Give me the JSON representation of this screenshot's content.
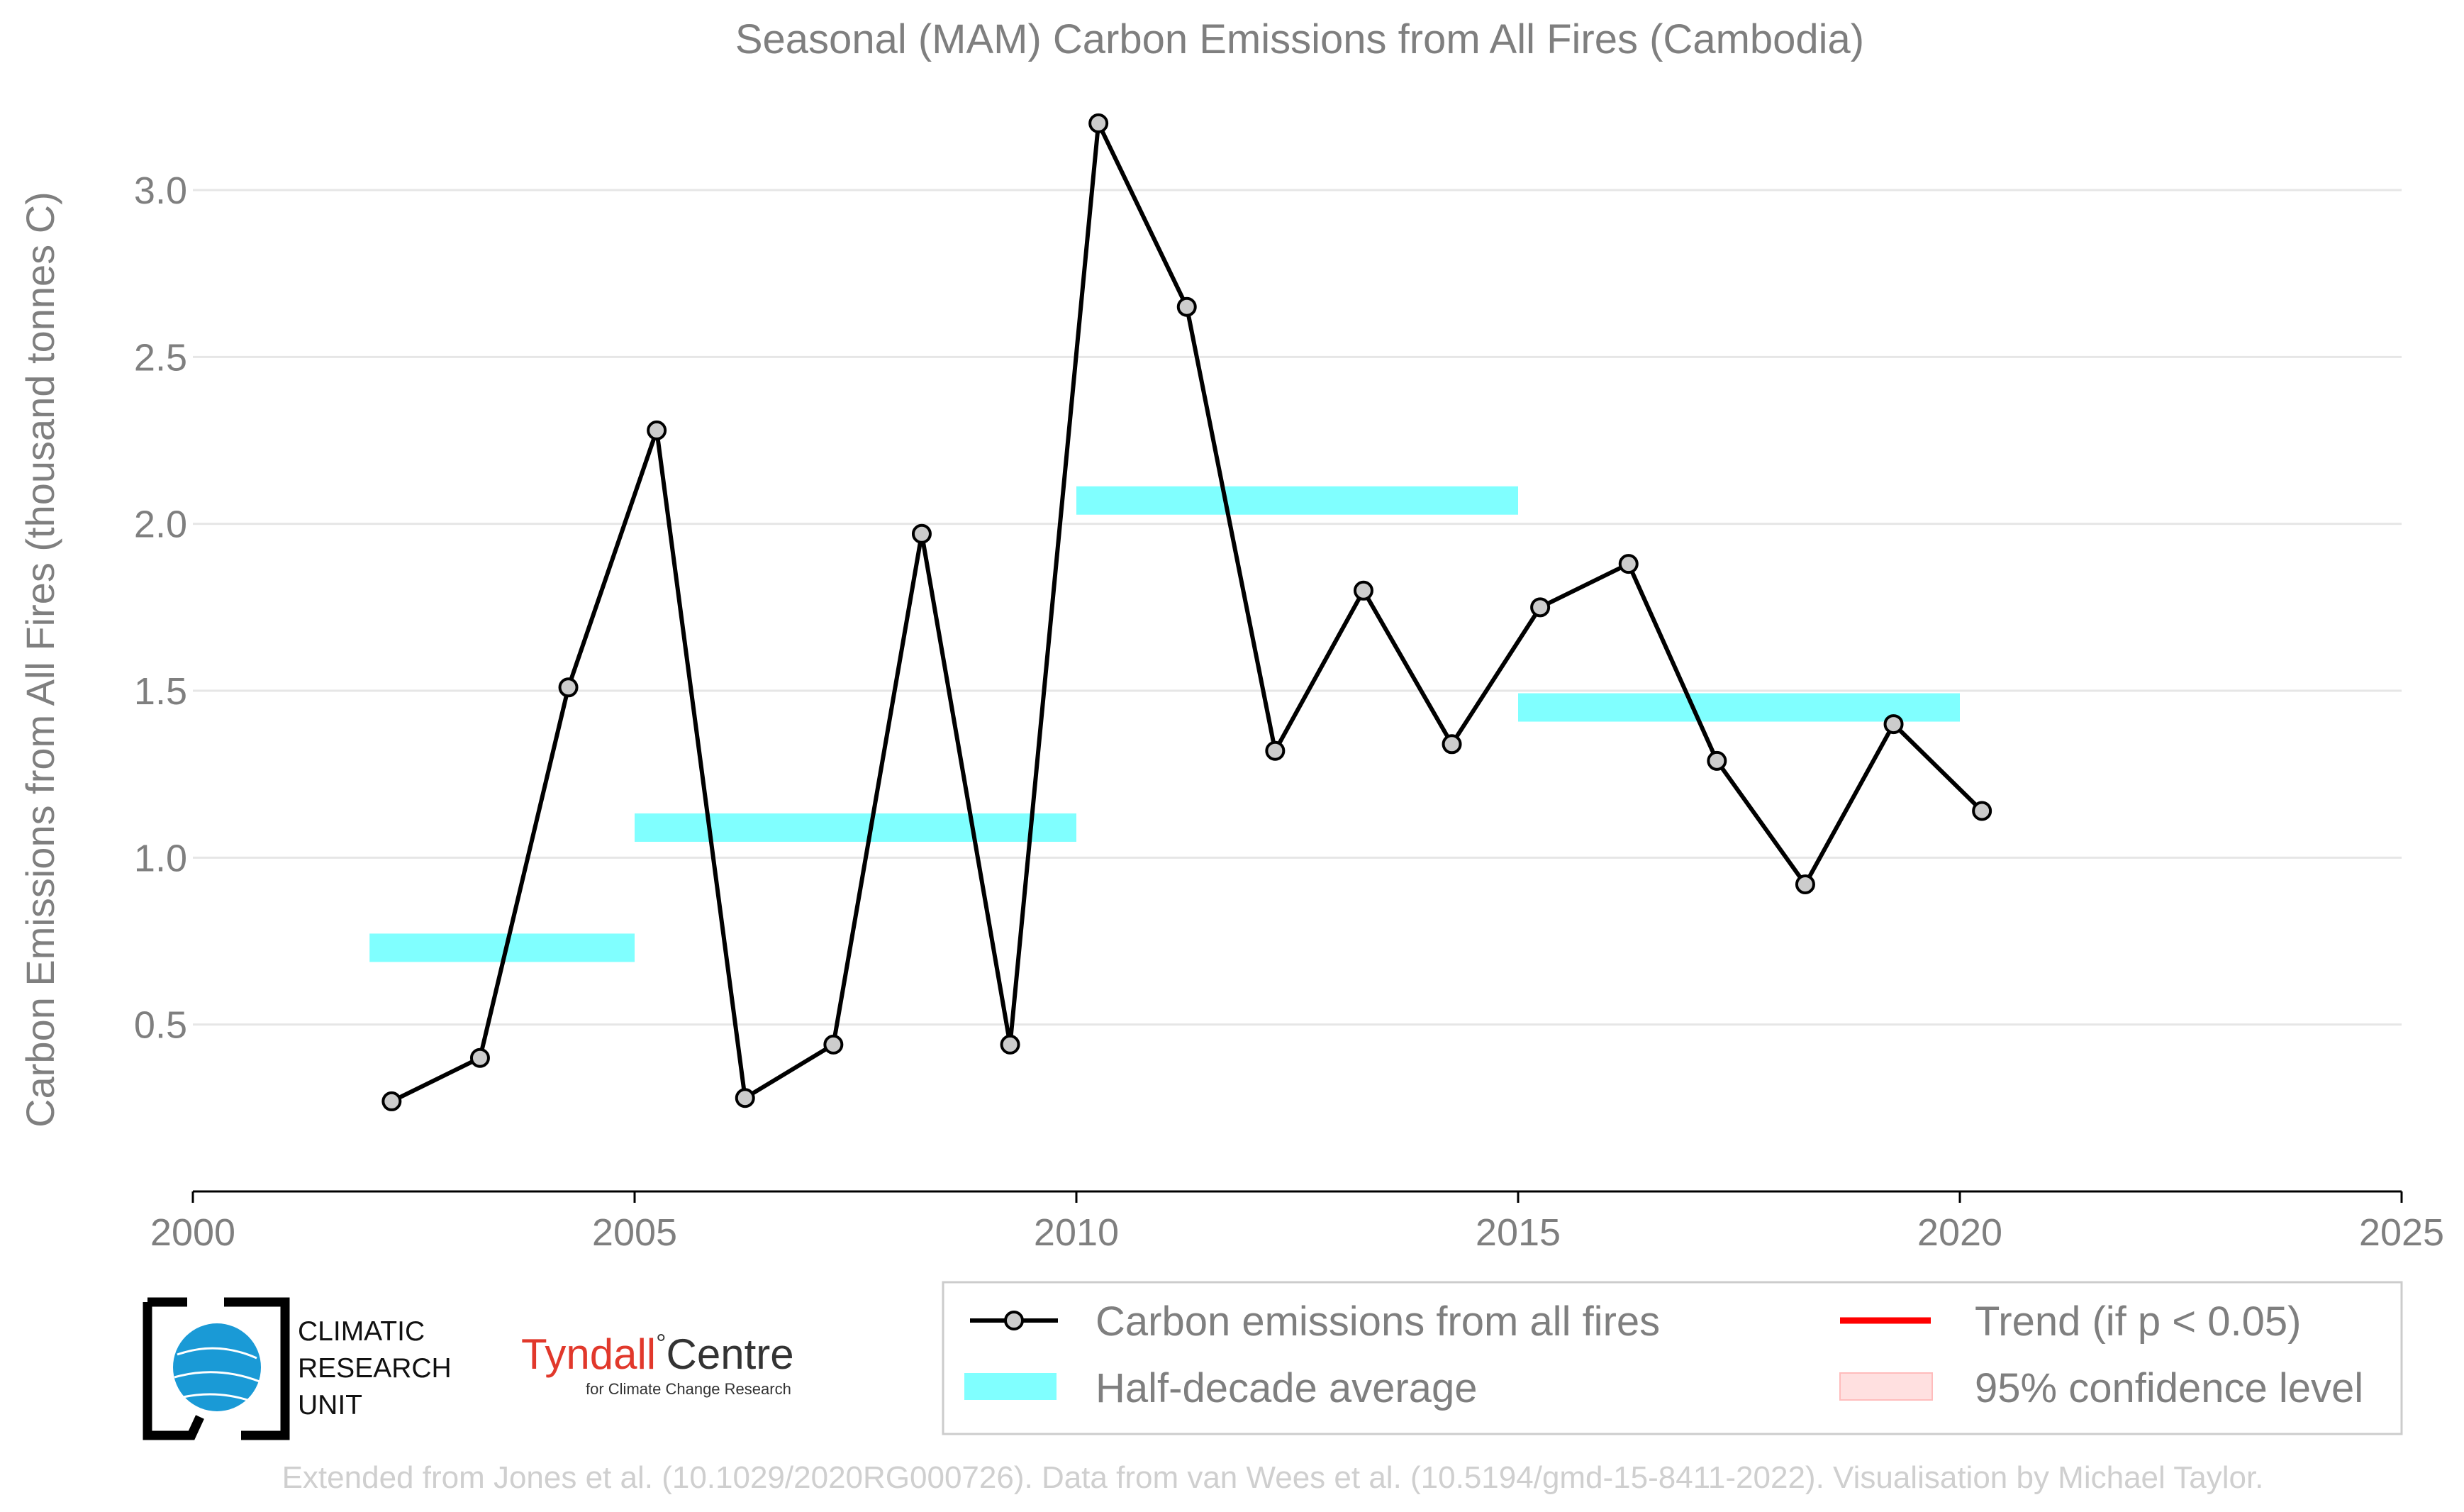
{
  "chart_data": {
    "type": "line",
    "title": "Seasonal (MAM) Carbon Emissions from All Fires (Cambodia)",
    "xlabel": "",
    "ylabel": "Carbon Emissions from All Fires (thousand tonnes C)",
    "xlim": [
      2000,
      2025
    ],
    "ylim": [
      0.0,
      3.3
    ],
    "x_ticks": [
      2000,
      2005,
      2010,
      2015,
      2020,
      2025
    ],
    "y_ticks": [
      0.5,
      1.0,
      1.5,
      2.0,
      2.5,
      3.0
    ],
    "x_tick_labels": [
      "2000",
      "2005",
      "2010",
      "2015",
      "2020",
      "2025"
    ],
    "y_tick_labels": [
      "0.5",
      "1.0",
      "1.5",
      "2.0",
      "2.5",
      "3.0"
    ],
    "grid": "horizontal",
    "legend_position": "bottom-right",
    "series": [
      {
        "name": "Carbon emissions from all fires",
        "color": "#000000",
        "marker_fill": "#cccccc",
        "x": [
          2002.25,
          2003.25,
          2004.25,
          2005.25,
          2006.25,
          2007.25,
          2008.25,
          2009.25,
          2010.25,
          2011.25,
          2012.25,
          2013.25,
          2014.25,
          2015.25,
          2016.25,
          2017.25,
          2018.25,
          2019.25,
          2020.25
        ],
        "y": [
          0.27,
          0.4,
          1.51,
          2.28,
          0.28,
          0.44,
          1.97,
          0.44,
          3.2,
          2.65,
          1.32,
          1.8,
          1.34,
          1.75,
          1.88,
          1.29,
          0.92,
          1.4,
          1.14
        ]
      }
    ],
    "half_decade_average": {
      "name": "Half-decade average",
      "color": "#80ffff",
      "segments": [
        {
          "x_start": 2002,
          "x_end": 2005,
          "value": 0.73
        },
        {
          "x_start": 2005,
          "x_end": 2010,
          "value": 1.09
        },
        {
          "x_start": 2010,
          "x_end": 2015,
          "value": 2.07
        },
        {
          "x_start": 2015,
          "x_end": 2020,
          "value": 1.45
        }
      ]
    },
    "legend": [
      {
        "label": "Carbon emissions from all fires",
        "kind": "line-marker",
        "color": "#000000"
      },
      {
        "label": "Half-decade average",
        "kind": "patch",
        "color": "#80ffff"
      },
      {
        "label": "Trend (if p < 0.05)",
        "kind": "line",
        "color": "#ff0000"
      },
      {
        "label": "95% confidence level",
        "kind": "patch",
        "color": "#ffe0e0"
      }
    ]
  },
  "logos": {
    "cru": {
      "line1": "CLIMATIC",
      "line2": "RESEARCH",
      "line3": "UNIT"
    },
    "tyndall": {
      "main_left": "Tyndall",
      "degree": "°",
      "main_right": "Centre",
      "sub": "for Climate Change Research"
    }
  },
  "footer": "Extended from Jones et al. (10.1029/2020RG000726). Data from van Wees et al. (10.5194/gmd-15-8411-2022). Visualisation by Michael Taylor."
}
